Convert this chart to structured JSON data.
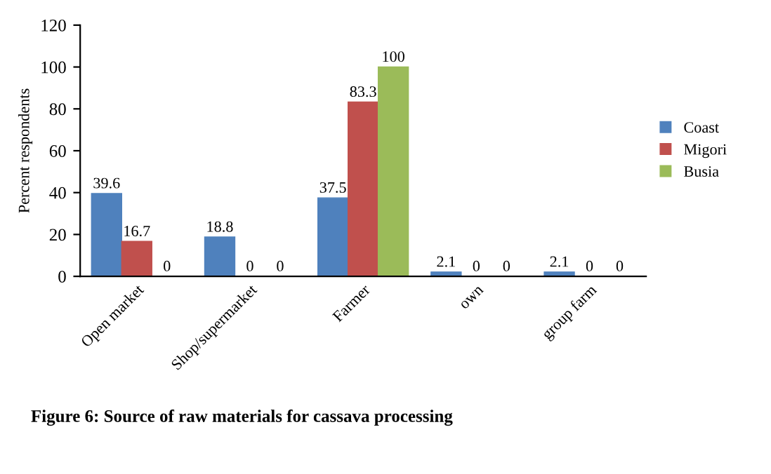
{
  "chart_data": {
    "type": "bar",
    "ylabel": "Percent respondents",
    "categories": [
      "Open market",
      "Shop/supermarket",
      "Farmer",
      "own",
      "group farm"
    ],
    "series": [
      {
        "name": "Coast",
        "color": "#4f81bd",
        "values": [
          39.6,
          18.8,
          37.5,
          2.1,
          2.1
        ]
      },
      {
        "name": "Migori",
        "color": "#c0504d",
        "values": [
          16.7,
          0,
          83.3,
          0,
          0
        ]
      },
      {
        "name": "Busia",
        "color": "#9bbb59",
        "values": [
          0,
          0,
          100,
          0,
          0
        ]
      }
    ],
    "ylim": [
      0,
      120
    ],
    "yticks": [
      0,
      20,
      40,
      60,
      80,
      100,
      120
    ],
    "data_labels": true,
    "grid": false,
    "legend": "right",
    "annotations": [
      "Figure 6: Source of raw materials for cassava processing"
    ]
  }
}
